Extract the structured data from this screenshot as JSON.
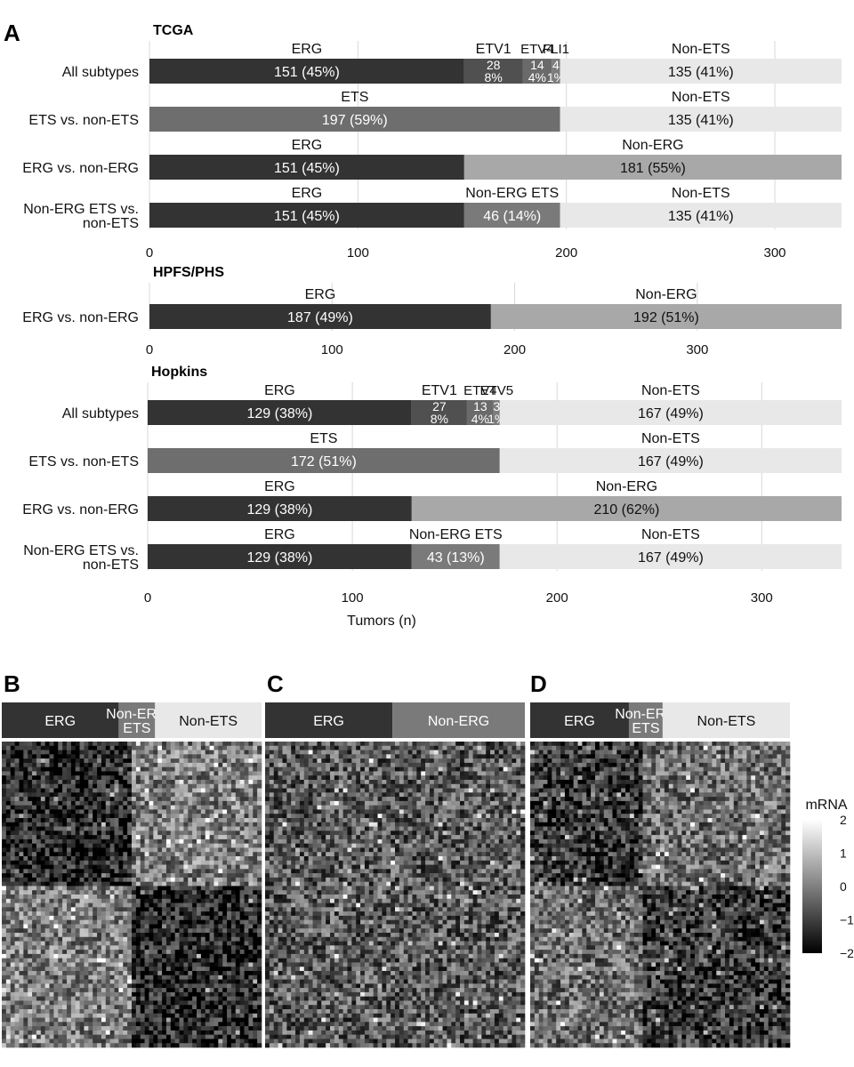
{
  "panel_letters": {
    "a": "A",
    "b": "B",
    "c": "C",
    "d": "D"
  },
  "chart_data": [
    {
      "type": "bar",
      "orientation": "horizontal",
      "stacked": true,
      "title": "TCGA",
      "xlabel": "",
      "xlim": [
        0,
        332
      ],
      "xticks": [
        0,
        100,
        200,
        300
      ],
      "grid": true,
      "rows": [
        {
          "label": "All subtypes",
          "segments": [
            {
              "name": "ERG",
              "value": 151,
              "text": "151 (45%)",
              "color": "#333333"
            },
            {
              "name": "ETV1",
              "value": 28,
              "text": "28\n8%",
              "color": "#505050"
            },
            {
              "name": "ETV4",
              "value": 14,
              "text": "14\n4%",
              "color": "#6a6a6a"
            },
            {
              "name": "FLI1",
              "value": 4,
              "text": "4\n1%",
              "color": "#7c7c7c"
            },
            {
              "name": "Non-ETS",
              "value": 135,
              "text": "135 (41%)",
              "color": "#e8e8e8"
            }
          ]
        },
        {
          "label": "ETS vs. non-ETS",
          "segments": [
            {
              "name": "ETS",
              "value": 197,
              "text": "197 (59%)",
              "color": "#6e6e6e"
            },
            {
              "name": "Non-ETS",
              "value": 135,
              "text": "135 (41%)",
              "color": "#e8e8e8"
            }
          ]
        },
        {
          "label": "ERG vs. non-ERG",
          "segments": [
            {
              "name": "ERG",
              "value": 151,
              "text": "151 (45%)",
              "color": "#333333"
            },
            {
              "name": "Non-ERG",
              "value": 181,
              "text": "181 (55%)",
              "color": "#a8a8a8"
            }
          ]
        },
        {
          "label": "Non-ERG ETS vs.\nnon-ETS",
          "segments": [
            {
              "name": "ERG",
              "value": 151,
              "text": "151 (45%)",
              "color": "#333333"
            },
            {
              "name": "Non-ERG ETS",
              "value": 46,
              "text": "46 (14%)",
              "color": "#7a7a7a"
            },
            {
              "name": "Non-ETS",
              "value": 135,
              "text": "135 (41%)",
              "color": "#e8e8e8"
            }
          ]
        }
      ]
    },
    {
      "type": "bar",
      "orientation": "horizontal",
      "stacked": true,
      "title": "HPFS/PHS",
      "xlabel": "",
      "xlim": [
        0,
        379
      ],
      "xticks": [
        0,
        100,
        200,
        300
      ],
      "grid": true,
      "rows": [
        {
          "label": "ERG vs. non-ERG",
          "segments": [
            {
              "name": "ERG",
              "value": 187,
              "text": "187 (49%)",
              "color": "#333333"
            },
            {
              "name": "Non-ERG",
              "value": 192,
              "text": "192 (51%)",
              "color": "#a8a8a8"
            }
          ]
        }
      ]
    },
    {
      "type": "bar",
      "orientation": "horizontal",
      "stacked": true,
      "title": "Hopkins",
      "xlabel": "Tumors (n)",
      "xlim": [
        0,
        339
      ],
      "xticks": [
        0,
        100,
        200,
        300
      ],
      "grid": true,
      "rows": [
        {
          "label": "All subtypes",
          "segments": [
            {
              "name": "ERG",
              "value": 129,
              "text": "129 (38%)",
              "color": "#333333"
            },
            {
              "name": "ETV1",
              "value": 27,
              "text": "27\n8%",
              "color": "#505050"
            },
            {
              "name": "ETV4",
              "value": 13,
              "text": "13\n4%",
              "color": "#6a6a6a"
            },
            {
              "name": "ETV5",
              "value": 3,
              "text": "3\n1%",
              "color": "#7c7c7c"
            },
            {
              "name": "Non-ETS",
              "value": 167,
              "text": "167 (49%)",
              "color": "#e8e8e8"
            }
          ]
        },
        {
          "label": "ETS vs. non-ETS",
          "segments": [
            {
              "name": "ETS",
              "value": 172,
              "text": "172 (51%)",
              "color": "#6e6e6e"
            },
            {
              "name": "Non-ETS",
              "value": 167,
              "text": "167 (49%)",
              "color": "#e8e8e8"
            }
          ]
        },
        {
          "label": "ERG vs. non-ERG",
          "segments": [
            {
              "name": "ERG",
              "value": 129,
              "text": "129 (38%)",
              "color": "#333333"
            },
            {
              "name": "Non-ERG",
              "value": 210,
              "text": "210 (62%)",
              "color": "#a8a8a8"
            }
          ]
        },
        {
          "label": "Non-ERG ETS vs.\nnon-ETS",
          "segments": [
            {
              "name": "ERG",
              "value": 129,
              "text": "129 (38%)",
              "color": "#333333"
            },
            {
              "name": "Non-ERG ETS",
              "value": 43,
              "text": "43 (13%)",
              "color": "#7a7a7a"
            },
            {
              "name": "Non-ETS",
              "value": 167,
              "text": "167 (49%)",
              "color": "#e8e8e8"
            }
          ]
        }
      ]
    },
    {
      "type": "heatmap",
      "panel": "B",
      "annotation": [
        {
          "name": "ERG",
          "fraction": 0.45,
          "color": "#333333"
        },
        {
          "name": "Non-ERG\nETS",
          "fraction": 0.14,
          "color": "#7a7a7a"
        },
        {
          "name": "Non-ETS",
          "fraction": 0.41,
          "color": "#e8e8e8"
        }
      ],
      "pattern": "block"
    },
    {
      "type": "heatmap",
      "panel": "C",
      "annotation": [
        {
          "name": "ERG",
          "fraction": 0.49,
          "color": "#333333"
        },
        {
          "name": "Non-ERG",
          "fraction": 0.51,
          "color": "#7a7a7a"
        }
      ],
      "pattern": "noise"
    },
    {
      "type": "heatmap",
      "panel": "D",
      "annotation": [
        {
          "name": "ERG",
          "fraction": 0.38,
          "color": "#333333"
        },
        {
          "name": "Non-ERG\nETS",
          "fraction": 0.13,
          "color": "#7a7a7a"
        },
        {
          "name": "Non-ETS",
          "fraction": 0.49,
          "color": "#e8e8e8"
        }
      ],
      "pattern": "block-weak"
    }
  ],
  "colorbar": {
    "title": "mRNA",
    "ticks": [
      2,
      1,
      0,
      -1,
      -2
    ],
    "tick_labels": [
      "2",
      "1",
      "0",
      "−1",
      "−2"
    ],
    "low_color": "#000000",
    "high_color": "#ffffff"
  }
}
